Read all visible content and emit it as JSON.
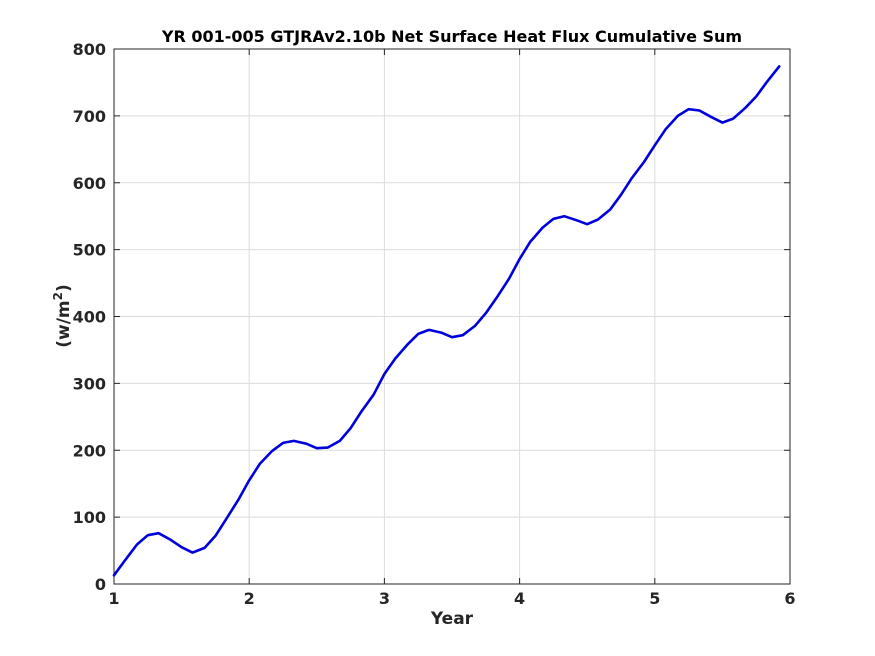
{
  "chart_data": {
    "type": "line",
    "title": "YR 001-005 GTJRAv2.10b Net Surface Heat Flux  Cumulative Sum",
    "xlabel": "Year",
    "ylabel": "(w/m2)",
    "ylabel_parts": {
      "main": "(w/m",
      "sup": "2",
      "end": ")"
    },
    "xlim": [
      1,
      6
    ],
    "ylim": [
      0,
      800
    ],
    "xticks": [
      1,
      2,
      3,
      4,
      5,
      6
    ],
    "yticks": [
      0,
      100,
      200,
      300,
      400,
      500,
      600,
      700,
      800
    ],
    "grid": true,
    "series_color": "#0000dd",
    "series": [
      {
        "x": [
          1.0,
          1.08,
          1.17,
          1.25,
          1.33,
          1.42,
          1.5,
          1.58,
          1.67,
          1.75,
          1.83,
          1.92,
          2.0,
          2.08,
          2.17,
          2.25,
          2.33,
          2.42,
          2.5,
          2.58,
          2.67,
          2.75,
          2.83,
          2.92,
          3.0,
          3.08,
          3.17,
          3.25,
          3.33,
          3.42,
          3.5,
          3.58,
          3.67,
          3.75,
          3.83,
          3.92,
          4.0,
          4.08,
          4.17,
          4.25,
          4.33,
          4.42,
          4.5,
          4.58,
          4.67,
          4.75,
          4.83,
          4.92,
          5.0,
          5.08,
          5.17,
          5.25,
          5.33,
          5.42,
          5.5,
          5.58,
          5.67,
          5.75,
          5.83,
          5.92
        ],
        "values": [
          13,
          35,
          59,
          73,
          76,
          66,
          55,
          47,
          54,
          72,
          97,
          126,
          155,
          180,
          199,
          211,
          214,
          210,
          203,
          204,
          214,
          233,
          258,
          283,
          314,
          337,
          358,
          374,
          380,
          376,
          369,
          372,
          386,
          405,
          428,
          456,
          486,
          512,
          533,
          546,
          550,
          544,
          538,
          545,
          560,
          582,
          607,
          631,
          656,
          680,
          700,
          710,
          708,
          698,
          690,
          696,
          712,
          729,
          751,
          774
        ]
      }
    ]
  }
}
